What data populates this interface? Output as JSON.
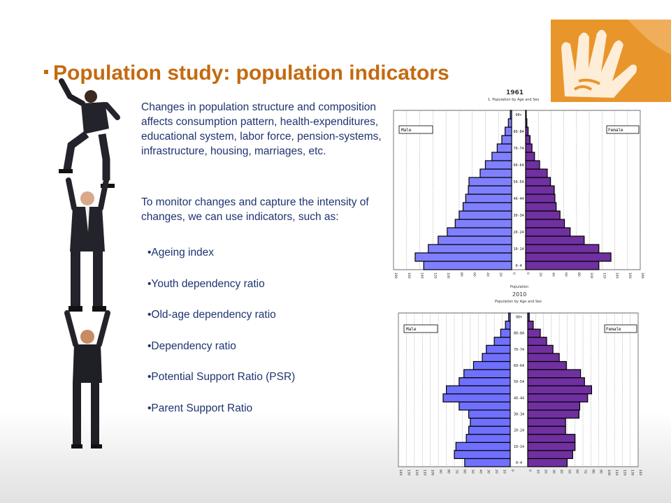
{
  "slide": {
    "title": "Population study: population indicators",
    "paragraph1": "Changes in population structure and composition affects consumption pattern, health-expenditures, educational system, labor force, pension-systems, infrastructure, housing, marriages, etc.",
    "paragraph2": "To monitor changes and capture the intensity of changes, we can use indicators, such as:",
    "indicators": [
      "•Ageing index",
      "•Youth dependency ratio",
      "•Old-age dependency ratio",
      "•Dependency ratio",
      "•Potential Support Ratio (PSR)",
      "•Parent Support Ratio"
    ]
  },
  "colors": {
    "accent": "#c46a0f",
    "text": "#1f3470",
    "logo": "#e8952b",
    "male": "#8080ff",
    "female": "#7030a0"
  },
  "chart_data": [
    {
      "type": "bar",
      "orientation": "population-pyramid",
      "year": "1961",
      "subtitle": "1. Population by Age and Sex",
      "categories": [
        "0-4",
        "5-9",
        "10-14",
        "15-19",
        "20-24",
        "25-29",
        "30-34",
        "35-39",
        "40-44",
        "45-49",
        "50-54",
        "55-59",
        "60-64",
        "65-69",
        "70-74",
        "75-79",
        "80-84",
        "85-89",
        "90+"
      ],
      "tick_labels": [
        "0-4",
        "10-14",
        "20-24",
        "30-34",
        "40-44",
        "50-54",
        "60-64",
        "70-74",
        "80-84",
        "90+"
      ],
      "series": [
        {
          "name": "Male",
          "values": [
            134,
            147,
            127,
            112,
            98,
            86,
            80,
            74,
            70,
            66,
            65,
            48,
            40,
            30,
            22,
            15,
            10,
            5,
            2
          ]
        },
        {
          "name": "Female",
          "values": [
            115,
            134,
            115,
            92,
            70,
            61,
            54,
            48,
            46,
            45,
            39,
            34,
            22,
            14,
            10,
            7,
            4,
            2,
            1
          ]
        }
      ],
      "x_ticks_left": [
        "0",
        "20",
        "40",
        "60",
        "80",
        "100",
        "120",
        "140",
        "160",
        "180"
      ],
      "x_ticks_right": [
        "0",
        "20",
        "40",
        "60",
        "80",
        "100",
        "120",
        "140",
        "160",
        "180"
      ],
      "xlim": [
        0,
        180
      ],
      "grid": true
    },
    {
      "type": "bar",
      "orientation": "population-pyramid",
      "supertitle": "Population",
      "year": "2010",
      "subtitle": "Population by Age and Sex",
      "categories": [
        "0-4",
        "5-9",
        "10-14",
        "15-19",
        "20-24",
        "25-29",
        "30-34",
        "35-39",
        "40-44",
        "45-49",
        "50-54",
        "55-59",
        "60-64",
        "65-69",
        "70-74",
        "75-79",
        "80-84",
        "85-89",
        "90+"
      ],
      "tick_labels": [
        "0-4",
        "10-14",
        "20-24",
        "30-34",
        "40-44",
        "50-54",
        "60-64",
        "70-74",
        "80-84",
        "90+"
      ],
      "series": [
        {
          "name": "Male",
          "values": [
            57,
            70,
            68,
            55,
            52,
            50,
            52,
            64,
            84,
            80,
            64,
            58,
            46,
            35,
            30,
            20,
            12,
            6,
            2
          ]
        },
        {
          "name": "Female",
          "values": [
            50,
            57,
            60,
            60,
            48,
            48,
            65,
            66,
            76,
            81,
            72,
            67,
            49,
            40,
            32,
            24,
            16,
            7,
            2
          ]
        }
      ],
      "x_ticks_left": [
        "0",
        "10",
        "20",
        "30",
        "40",
        "50",
        "60",
        "70",
        "80",
        "90",
        "100",
        "110",
        "120",
        "130",
        "140"
      ],
      "x_ticks_right": [
        "0",
        "10",
        "20",
        "30",
        "40",
        "50",
        "60",
        "70",
        "80",
        "90",
        "100",
        "110",
        "120",
        "130",
        "140"
      ],
      "xlim": [
        0,
        140
      ],
      "grid": true
    }
  ]
}
